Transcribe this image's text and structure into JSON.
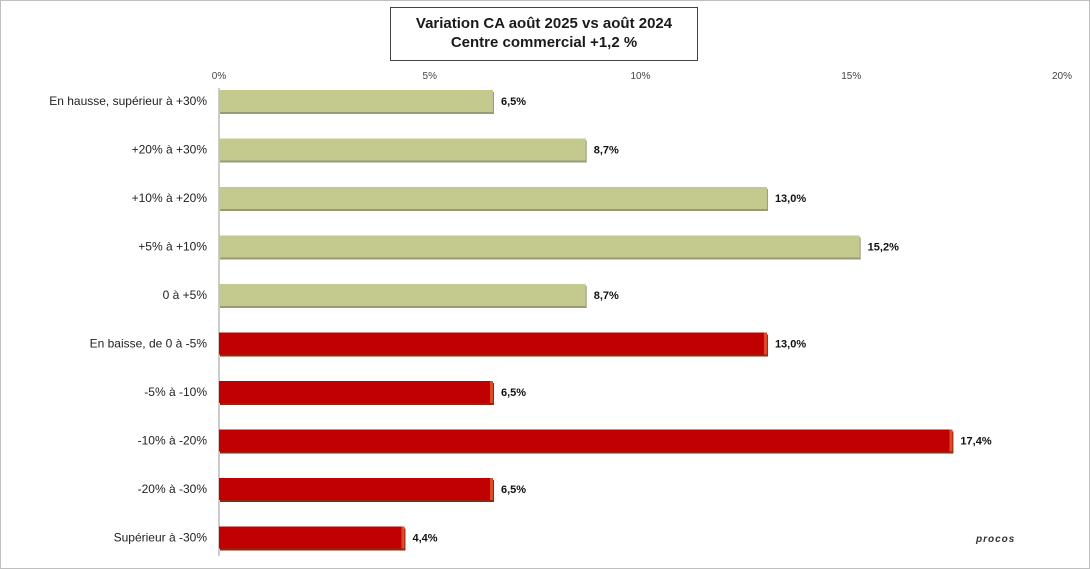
{
  "title": {
    "line1": "Variation CA août 2025 vs août 2024",
    "line2": "Centre commercial   +1,2 %"
  },
  "logo": {
    "text": "procos"
  },
  "colors": {
    "hausse": "#c4c98e",
    "baisse": "#c00000",
    "baisse_edge": "#e0482a"
  },
  "chart_data": {
    "type": "bar",
    "orientation": "horizontal",
    "categories": [
      "En hausse, supérieur à +30%",
      "+20% à +30%",
      "+10% à +20%",
      "+5% à +10%",
      "0 à +5%",
      "En baisse, de 0 à -5%",
      "-5% à -10%",
      "-10% à -20%",
      "-20% à -30%",
      "Supérieur à -30%"
    ],
    "values": [
      6.5,
      8.7,
      13.0,
      15.2,
      8.7,
      13.0,
      6.5,
      17.4,
      6.5,
      4.4
    ],
    "value_labels": [
      "6,5%",
      "8,7%",
      "13,0%",
      "15,2%",
      "8,7%",
      "13,0%",
      "6,5%",
      "17,4%",
      "6,5%",
      "4,4%"
    ],
    "groups": [
      "hausse",
      "hausse",
      "hausse",
      "hausse",
      "hausse",
      "baisse",
      "baisse",
      "baisse",
      "baisse",
      "baisse"
    ],
    "xlim": [
      0,
      20
    ],
    "ticks": [
      0,
      5,
      10,
      15,
      20
    ],
    "tick_labels": [
      "0%",
      "5%",
      "10%",
      "15%",
      "20%"
    ],
    "xaxis_position": "top",
    "grid": false,
    "legend": "none"
  }
}
